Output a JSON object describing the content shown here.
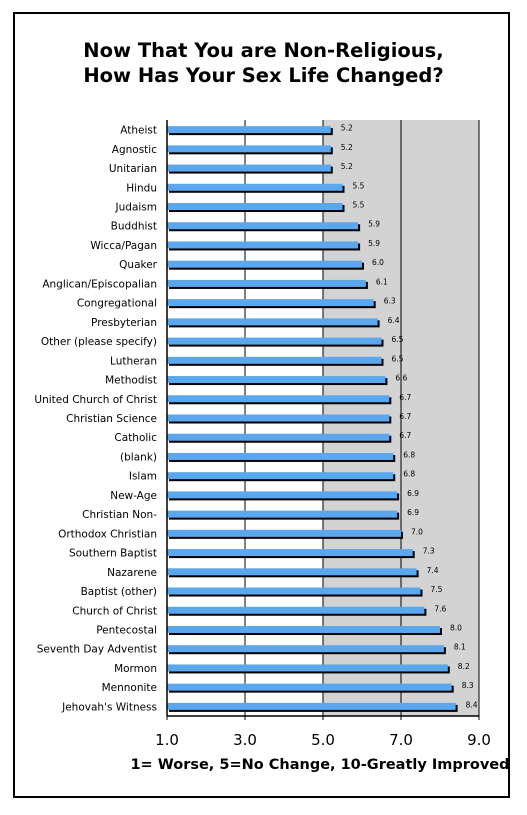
{
  "chart_data": {
    "type": "bar",
    "orientation": "horizontal",
    "title": [
      "Now That You are Non-Religious,",
      "How Has Your Sex Life Changed?"
    ],
    "xlabel": "1= Worse, 5=No Change, 10-Greatly Improved",
    "xlim": [
      1.0,
      9.0
    ],
    "xticks": [
      1.0,
      3.0,
      5.0,
      7.0,
      9.0
    ],
    "xtick_labels": [
      "1.0",
      "3.0",
      "5.0",
      "7.0",
      "9.0"
    ],
    "categories": [
      "Atheist",
      "Agnostic",
      "Unitarian",
      "Hindu",
      "Judaism",
      "Buddhist",
      "Wicca/Pagan",
      "Quaker",
      "Anglican/Episcopalian",
      "Congregational",
      "Presbyterian",
      "Other (please specify)",
      "Lutheran",
      "Methodist",
      "United Church of Christ",
      "Christian Science",
      "Catholic",
      "(blank)",
      "Islam",
      "New-Age",
      "Christian Non-",
      "Orthodox Christian",
      "Southern Baptist",
      "Nazarene",
      "Baptist (other)",
      "Church of Christ",
      "Pentecostal",
      "Seventh Day Adventist",
      "Mormon",
      "Mennonite",
      "Jehovah's Witness"
    ],
    "values": [
      5.2,
      5.2,
      5.2,
      5.5,
      5.5,
      5.9,
      5.9,
      6.0,
      6.1,
      6.3,
      6.4,
      6.5,
      6.5,
      6.6,
      6.7,
      6.7,
      6.7,
      6.8,
      6.8,
      6.9,
      6.9,
      7.0,
      7.3,
      7.4,
      7.5,
      7.6,
      8.0,
      8.1,
      8.2,
      8.3,
      8.4
    ],
    "value_labels": [
      "5.2",
      "5.2",
      "5.2",
      "5.5",
      "5.5",
      "5.9",
      "5.9",
      "6.0",
      "6.1",
      "6.3",
      "6.4",
      "6.5",
      "6.5",
      "6.6",
      "6.7",
      "6.7",
      "6.7",
      "6.8",
      "6.8",
      "6.9",
      "6.9",
      "7.0",
      "7.3",
      "7.4",
      "7.5",
      "7.6",
      "8.0",
      "8.1",
      "8.2",
      "8.3",
      "8.4"
    ],
    "grid": true,
    "colors": {
      "bar": "#5aa7ee",
      "bar_shadow": "#000000",
      "plot_background": "#d3d3d3",
      "grid": "#000000"
    }
  }
}
